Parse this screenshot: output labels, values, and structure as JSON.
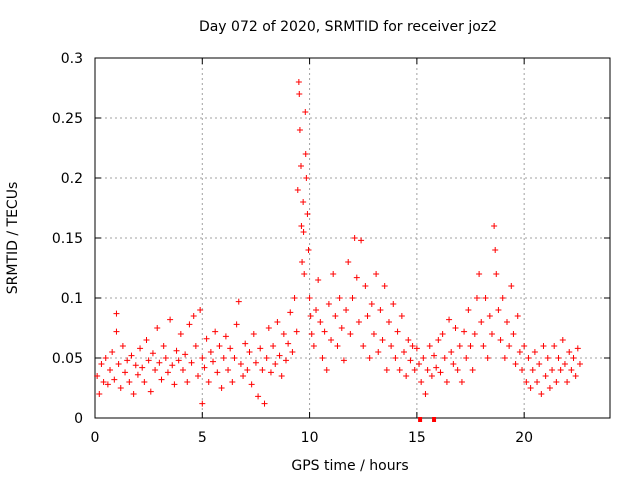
{
  "chart_data": {
    "type": "scatter",
    "title": "Day 072 of 2020, SRMTID for receiver joz2",
    "xlabel": "GPS time / hours",
    "ylabel": "SRMTID / TECUs",
    "xlim": [
      0,
      24
    ],
    "ylim": [
      0,
      0.3
    ],
    "xticks": [
      0,
      5,
      10,
      15,
      20
    ],
    "xtick_labels": [
      "0",
      "5",
      "10",
      "15",
      "20"
    ],
    "yticks": [
      0,
      0.05,
      0.1,
      0.15,
      0.2,
      0.25,
      0.3
    ],
    "ytick_labels": [
      "0",
      "0.05",
      "0.1",
      "0.15",
      "0.2",
      "0.25",
      "0.3"
    ],
    "grid": true,
    "marker": "plus",
    "color": "#ff0000",
    "series": [
      {
        "name": "SRMTID",
        "points": [
          [
            0.1,
            0.035
          ],
          [
            0.2,
            0.02
          ],
          [
            0.3,
            0.045
          ],
          [
            0.4,
            0.03
          ],
          [
            0.5,
            0.05
          ],
          [
            0.6,
            0.028
          ],
          [
            0.7,
            0.04
          ],
          [
            0.8,
            0.055
          ],
          [
            0.9,
            0.032
          ],
          [
            1.0,
            0.087
          ],
          [
            1.0,
            0.072
          ],
          [
            1.1,
            0.045
          ],
          [
            1.2,
            0.025
          ],
          [
            1.3,
            0.06
          ],
          [
            1.4,
            0.038
          ],
          [
            1.5,
            0.048
          ],
          [
            1.6,
            0.03
          ],
          [
            1.7,
            0.052
          ],
          [
            1.8,
            0.02
          ],
          [
            1.9,
            0.044
          ],
          [
            2.0,
            0.036
          ],
          [
            2.1,
            0.058
          ],
          [
            2.2,
            0.042
          ],
          [
            2.3,
            0.03
          ],
          [
            2.4,
            0.065
          ],
          [
            2.5,
            0.048
          ],
          [
            2.6,
            0.022
          ],
          [
            2.7,
            0.054
          ],
          [
            2.8,
            0.04
          ],
          [
            2.9,
            0.075
          ],
          [
            3.0,
            0.046
          ],
          [
            3.1,
            0.032
          ],
          [
            3.2,
            0.06
          ],
          [
            3.3,
            0.05
          ],
          [
            3.4,
            0.038
          ],
          [
            3.5,
            0.082
          ],
          [
            3.6,
            0.044
          ],
          [
            3.7,
            0.028
          ],
          [
            3.8,
            0.056
          ],
          [
            3.9,
            0.048
          ],
          [
            4.0,
            0.07
          ],
          [
            4.1,
            0.04
          ],
          [
            4.2,
            0.053
          ],
          [
            4.3,
            0.03
          ],
          [
            4.4,
            0.078
          ],
          [
            4.5,
            0.046
          ],
          [
            4.6,
            0.085
          ],
          [
            4.7,
            0.06
          ],
          [
            4.8,
            0.035
          ],
          [
            4.9,
            0.09
          ],
          [
            5.0,
            0.05
          ],
          [
            5.0,
            0.012
          ],
          [
            5.1,
            0.042
          ],
          [
            5.2,
            0.066
          ],
          [
            5.3,
            0.03
          ],
          [
            5.4,
            0.055
          ],
          [
            5.5,
            0.047
          ],
          [
            5.6,
            0.072
          ],
          [
            5.7,
            0.038
          ],
          [
            5.8,
            0.06
          ],
          [
            5.9,
            0.025
          ],
          [
            6.0,
            0.05
          ],
          [
            6.1,
            0.068
          ],
          [
            6.2,
            0.04
          ],
          [
            6.3,
            0.058
          ],
          [
            6.4,
            0.03
          ],
          [
            6.5,
            0.05
          ],
          [
            6.6,
            0.078
          ],
          [
            6.7,
            0.097
          ],
          [
            6.8,
            0.045
          ],
          [
            6.9,
            0.035
          ],
          [
            7.0,
            0.062
          ],
          [
            7.1,
            0.04
          ],
          [
            7.2,
            0.055
          ],
          [
            7.3,
            0.028
          ],
          [
            7.4,
            0.07
          ],
          [
            7.5,
            0.046
          ],
          [
            7.6,
            0.018
          ],
          [
            7.7,
            0.058
          ],
          [
            7.8,
            0.04
          ],
          [
            7.9,
            0.012
          ],
          [
            8.0,
            0.05
          ],
          [
            8.1,
            0.075
          ],
          [
            8.2,
            0.038
          ],
          [
            8.3,
            0.06
          ],
          [
            8.4,
            0.045
          ],
          [
            8.5,
            0.08
          ],
          [
            8.6,
            0.052
          ],
          [
            8.7,
            0.035
          ],
          [
            8.8,
            0.07
          ],
          [
            8.9,
            0.048
          ],
          [
            9.0,
            0.062
          ],
          [
            9.1,
            0.088
          ],
          [
            9.2,
            0.055
          ],
          [
            9.3,
            0.1
          ],
          [
            9.4,
            0.072
          ],
          [
            9.45,
            0.19
          ],
          [
            9.5,
            0.28
          ],
          [
            9.52,
            0.27
          ],
          [
            9.55,
            0.24
          ],
          [
            9.6,
            0.21
          ],
          [
            9.62,
            0.16
          ],
          [
            9.65,
            0.13
          ],
          [
            9.7,
            0.18
          ],
          [
            9.72,
            0.155
          ],
          [
            9.75,
            0.12
          ],
          [
            9.8,
            0.255
          ],
          [
            9.82,
            0.22
          ],
          [
            9.85,
            0.2
          ],
          [
            9.9,
            0.17
          ],
          [
            9.95,
            0.14
          ],
          [
            10.0,
            0.1
          ],
          [
            10.05,
            0.085
          ],
          [
            10.1,
            0.07
          ],
          [
            10.2,
            0.06
          ],
          [
            10.3,
            0.09
          ],
          [
            10.4,
            0.115
          ],
          [
            10.5,
            0.08
          ],
          [
            10.6,
            0.05
          ],
          [
            10.7,
            0.072
          ],
          [
            10.8,
            0.04
          ],
          [
            10.9,
            0.095
          ],
          [
            11.0,
            0.065
          ],
          [
            11.1,
            0.12
          ],
          [
            11.2,
            0.085
          ],
          [
            11.3,
            0.06
          ],
          [
            11.4,
            0.1
          ],
          [
            11.5,
            0.075
          ],
          [
            11.6,
            0.048
          ],
          [
            11.7,
            0.09
          ],
          [
            11.8,
            0.13
          ],
          [
            11.9,
            0.07
          ],
          [
            12.0,
            0.1
          ],
          [
            12.1,
            0.15
          ],
          [
            12.2,
            0.117
          ],
          [
            12.3,
            0.08
          ],
          [
            12.4,
            0.148
          ],
          [
            12.5,
            0.06
          ],
          [
            12.6,
            0.11
          ],
          [
            12.7,
            0.085
          ],
          [
            12.8,
            0.05
          ],
          [
            12.9,
            0.095
          ],
          [
            13.0,
            0.07
          ],
          [
            13.1,
            0.12
          ],
          [
            13.2,
            0.055
          ],
          [
            13.3,
            0.09
          ],
          [
            13.4,
            0.065
          ],
          [
            13.5,
            0.11
          ],
          [
            13.6,
            0.04
          ],
          [
            13.7,
            0.08
          ],
          [
            13.8,
            0.06
          ],
          [
            13.9,
            0.095
          ],
          [
            14.0,
            0.05
          ],
          [
            14.1,
            0.072
          ],
          [
            14.2,
            0.04
          ],
          [
            14.3,
            0.085
          ],
          [
            14.4,
            0.055
          ],
          [
            14.5,
            0.035
          ],
          [
            14.6,
            0.065
          ],
          [
            14.7,
            0.048
          ],
          [
            14.8,
            0.06
          ],
          [
            14.9,
            0.04
          ],
          [
            15.0,
            0.058
          ],
          [
            15.1,
            0.045
          ],
          [
            15.2,
            0.03
          ],
          [
            15.3,
            0.05
          ],
          [
            15.4,
            0.02
          ],
          [
            15.5,
            0.04
          ],
          [
            15.6,
            0.06
          ],
          [
            15.7,
            0.035
          ],
          [
            15.8,
            0.052
          ],
          [
            15.9,
            0.042
          ],
          [
            16.0,
            0.065
          ],
          [
            16.1,
            0.038
          ],
          [
            16.2,
            0.07
          ],
          [
            16.3,
            0.05
          ],
          [
            16.4,
            0.03
          ],
          [
            16.5,
            0.082
          ],
          [
            16.6,
            0.055
          ],
          [
            16.7,
            0.045
          ],
          [
            16.8,
            0.075
          ],
          [
            16.9,
            0.04
          ],
          [
            17.0,
            0.06
          ],
          [
            17.1,
            0.03
          ],
          [
            17.2,
            0.072
          ],
          [
            17.3,
            0.05
          ],
          [
            17.4,
            0.09
          ],
          [
            17.5,
            0.06
          ],
          [
            17.6,
            0.04
          ],
          [
            17.7,
            0.07
          ],
          [
            17.8,
            0.1
          ],
          [
            17.9,
            0.12
          ],
          [
            18.0,
            0.08
          ],
          [
            18.1,
            0.06
          ],
          [
            18.2,
            0.1
          ],
          [
            18.3,
            0.05
          ],
          [
            18.4,
            0.085
          ],
          [
            18.5,
            0.07
          ],
          [
            18.6,
            0.16
          ],
          [
            18.65,
            0.14
          ],
          [
            18.7,
            0.12
          ],
          [
            18.8,
            0.09
          ],
          [
            18.9,
            0.065
          ],
          [
            19.0,
            0.1
          ],
          [
            19.1,
            0.05
          ],
          [
            19.2,
            0.08
          ],
          [
            19.3,
            0.06
          ],
          [
            19.4,
            0.11
          ],
          [
            19.5,
            0.07
          ],
          [
            19.6,
            0.045
          ],
          [
            19.7,
            0.085
          ],
          [
            19.8,
            0.055
          ],
          [
            19.9,
            0.04
          ],
          [
            20.0,
            0.06
          ],
          [
            20.1,
            0.03
          ],
          [
            20.2,
            0.05
          ],
          [
            20.3,
            0.025
          ],
          [
            20.4,
            0.04
          ],
          [
            20.5,
            0.055
          ],
          [
            20.6,
            0.03
          ],
          [
            20.7,
            0.045
          ],
          [
            20.8,
            0.02
          ],
          [
            20.9,
            0.06
          ],
          [
            21.0,
            0.035
          ],
          [
            21.1,
            0.05
          ],
          [
            21.2,
            0.025
          ],
          [
            21.3,
            0.04
          ],
          [
            21.4,
            0.06
          ],
          [
            21.5,
            0.03
          ],
          [
            21.6,
            0.05
          ],
          [
            21.7,
            0.04
          ],
          [
            21.8,
            0.065
          ],
          [
            21.9,
            0.045
          ],
          [
            22.0,
            0.03
          ],
          [
            22.1,
            0.055
          ],
          [
            22.2,
            0.04
          ],
          [
            22.3,
            0.05
          ],
          [
            22.4,
            0.035
          ],
          [
            22.5,
            0.058
          ],
          [
            22.6,
            0.045
          ]
        ]
      }
    ],
    "gap_markers_x": [
      15.15,
      15.8
    ]
  }
}
